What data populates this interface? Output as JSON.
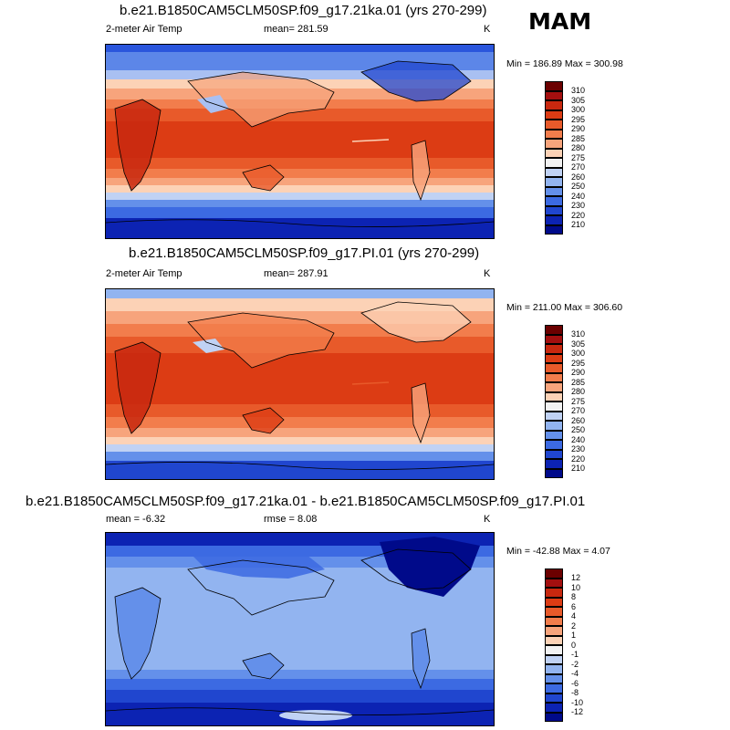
{
  "season": "MAM",
  "panels": [
    {
      "title": "b.e21.B1850CAM5CLM50SP.f09_g17.21ka.01 (yrs 270-299)",
      "left_label": "2-meter Air Temp",
      "center_label": "mean= 281.59",
      "units": "K",
      "minmax": "Min = 186.89 Max = 300.98",
      "colorbar_labels": [
        "310",
        "305",
        "300",
        "295",
        "290",
        "285",
        "280",
        "275",
        "270",
        "260",
        "250",
        "240",
        "230",
        "220",
        "210"
      ],
      "colorbar_colors": [
        "#6b0000",
        "#a30f0f",
        "#c8280f",
        "#dc3c14",
        "#e85a2a",
        "#f27d4c",
        "#f7a47c",
        "#fcd2b6",
        "#f2f2f2",
        "#c0d2f4",
        "#92b4f0",
        "#6490ea",
        "#3c6ae2",
        "#2046cf",
        "#0c23b3",
        "#000a8a"
      ]
    },
    {
      "title": "b.e21.B1850CAM5CLM50SP.f09_g17.PI.01 (yrs 270-299)",
      "left_label": "2-meter Air Temp",
      "center_label": "mean= 287.91",
      "units": "K",
      "minmax": "Min = 211.00 Max = 306.60",
      "colorbar_labels": [
        "310",
        "305",
        "300",
        "295",
        "290",
        "285",
        "280",
        "275",
        "270",
        "260",
        "250",
        "240",
        "230",
        "220",
        "210"
      ],
      "colorbar_colors": [
        "#6b0000",
        "#a30f0f",
        "#c8280f",
        "#dc3c14",
        "#e85a2a",
        "#f27d4c",
        "#f7a47c",
        "#fcd2b6",
        "#f2f2f2",
        "#c0d2f4",
        "#92b4f0",
        "#6490ea",
        "#3c6ae2",
        "#2046cf",
        "#0c23b3",
        "#000a8a"
      ]
    },
    {
      "title": "b.e21.B1850CAM5CLM50SP.f09_g17.21ka.01 - b.e21.B1850CAM5CLM50SP.f09_g17.PI.01",
      "left_label": "mean =  -6.32",
      "center_label": "rmse =   8.08",
      "units": "K",
      "minmax": "Min = -42.88 Max =   4.07",
      "colorbar_labels": [
        "12",
        "10",
        "8",
        "6",
        "4",
        "2",
        "1",
        "0",
        "-1",
        "-2",
        "-4",
        "-6",
        "-8",
        "-10",
        "-12"
      ],
      "colorbar_colors": [
        "#6b0000",
        "#a30f0f",
        "#c8280f",
        "#dc3c14",
        "#e85a2a",
        "#f27d4c",
        "#f7a47c",
        "#fcd2b6",
        "#f2f2f2",
        "#c0d2f4",
        "#92b4f0",
        "#6490ea",
        "#3c6ae2",
        "#2046cf",
        "#0c23b3",
        "#000a8a"
      ]
    }
  ]
}
